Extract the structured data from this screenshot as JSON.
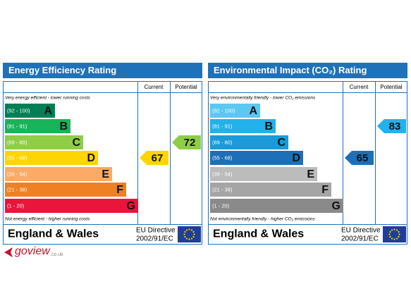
{
  "panels": [
    {
      "title": "Energy Efficiency Rating",
      "columns": [
        "Current",
        "Potential"
      ],
      "top_note": "Very energy efficient - lower running costs",
      "bottom_note": "Not energy efficient - higher running costs",
      "bands": [
        {
          "range": "(92 - 100)",
          "letter": "A",
          "color": "#008054"
        },
        {
          "range": "(81 - 91)",
          "letter": "B",
          "color": "#19b459"
        },
        {
          "range": "(69 - 80)",
          "letter": "C",
          "color": "#8dce46"
        },
        {
          "range": "(55 - 68)",
          "letter": "D",
          "color": "#ffd500"
        },
        {
          "range": "(39 - 54)",
          "letter": "E",
          "color": "#fcaa65"
        },
        {
          "range": "(21 - 38)",
          "letter": "F",
          "color": "#ef8023"
        },
        {
          "range": "(1 - 20)",
          "letter": "G",
          "color": "#e9153b"
        }
      ],
      "current": 67,
      "potential": 72,
      "footer": {
        "country": "England & Wales",
        "directive": [
          "EU Directive",
          "2002/91/EC"
        ]
      }
    },
    {
      "title": "Environmental Impact (CO₂) Rating",
      "columns": [
        "Current",
        "Potential"
      ],
      "top_note": "Very environmentally friendly - lower CO₂ emissions",
      "bottom_note": "Not environmentally friendly - higher CO₂ emissions",
      "bands": [
        {
          "range": "(92 - 100)",
          "letter": "A",
          "color": "#5bc8f0"
        },
        {
          "range": "(81 - 91)",
          "letter": "B",
          "color": "#22b1e8"
        },
        {
          "range": "(69 - 80)",
          "letter": "C",
          "color": "#1a9ad8"
        },
        {
          "range": "(55 - 68)",
          "letter": "D",
          "color": "#1d6fb7"
        },
        {
          "range": "(39 - 54)",
          "letter": "E",
          "color": "#bcbcbc"
        },
        {
          "range": "(21 - 38)",
          "letter": "F",
          "color": "#a5a5a5"
        },
        {
          "range": "(1 - 20)",
          "letter": "G",
          "color": "#8a8a8a"
        }
      ],
      "current": 65,
      "potential": 83,
      "footer": {
        "country": "England & Wales",
        "directive": [
          "EU Directive",
          "2002/91/EC"
        ]
      }
    }
  ],
  "logo": {
    "name": "goview",
    "suffix": ".co.uk"
  }
}
